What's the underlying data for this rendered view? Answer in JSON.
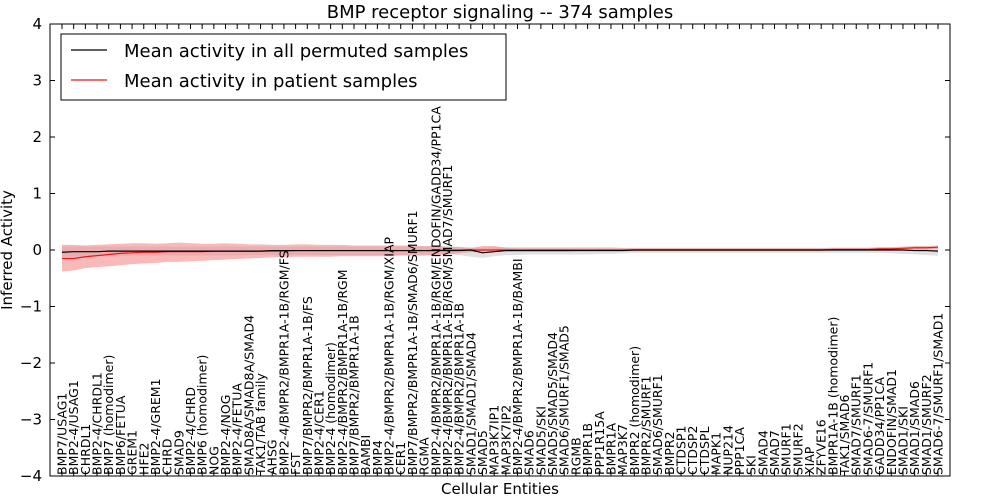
{
  "chart_data": {
    "type": "line",
    "title": "BMP receptor signaling -- 374 samples",
    "xlabel": "Cellular Entities",
    "ylabel": "Inferred Activity",
    "ylim": [
      -4,
      4
    ],
    "yticks": [
      -4,
      -3,
      -2,
      -1,
      0,
      1,
      2,
      3,
      4
    ],
    "legend_position": "top-left",
    "colors": {
      "permuted": "#000000",
      "patient": "#e41a1c",
      "patient_band": "#f28b8b",
      "permuted_band": "#c8c8c8"
    },
    "categories": [
      "BMP7/USAG1",
      "BMP2-4/USAG1",
      "CHRDL1",
      "BMP2-4/CHRDL1",
      "BMP7 (homodimer)",
      "BMP6/FETUA",
      "GREM1",
      "HFE2",
      "BMP2-4/GREM1",
      "CHRD",
      "SMAD9",
      "BMP2-4/CHRD",
      "BMP6 (homodimer)",
      "NOG",
      "BMP2-4/NOG",
      "BMP2-4/FETUA",
      "SMAD8A/SMAD8A/SMAD4",
      "TAK1/TAB family",
      "AHSG",
      "BMP2-4/BMPR2/BMPR1A-1B/RGM/FS",
      "FST",
      "BMP7/BMPR2/BMPR1A-1B/FS",
      "BMP2-4/CER1",
      "BMP2-4 (homodimer)",
      "BMP2-4/BMPR2/BMPR1A-1B/RGM",
      "BMP7/BMPR2/BMPR1A-1B",
      "BAMBI",
      "BMP4",
      "BMP2-4/BMPR2/BMPR1A-1B/RGM/XIAP",
      "CER1",
      "BMP7/BMPR2/BMPR1A-1B/SMAD6/SMURF1",
      "RGMA",
      "BMP2-4/BMPR2/BMPR1A-1B/RGM/ENDOFIN/GADD34/PP1CA",
      "BMP2-4/BMPR2/BMPR1A-1B/RGM/SMAD7/SMURF1",
      "BMP2-4/BMPR2/BMPR1A-1B",
      "SMAD1/SMAD1/SMAD4",
      "SMAD5",
      "MAP3K7IP1",
      "MAP3K7IP2",
      "BMP2-4/BMPR2/BMPR1A-1B/BAMBI",
      "SMAD6",
      "SMAD5/SKI",
      "SMAD5/SMAD5/SMAD4",
      "SMAD6/SMURF1/SMAD5",
      "RGMB",
      "BMPR1B",
      "PPP1R15A",
      "BMPR1A",
      "MAP3K7",
      "BMPR2 (homodimer)",
      "BMPR2/SMURF1",
      "SMAD6/SMURF1",
      "BMPR2",
      "CTDSP1",
      "CTDSP2",
      "CTDSPL",
      "MAPK1",
      "NUP214",
      "PPP1CA",
      "SKI",
      "SMAD4",
      "SMAD7",
      "SMURF1",
      "SMURF2",
      "XIAP",
      "ZFYVE16",
      "BMPR1A-1B (homodimer)",
      "TAK1/SMAD6",
      "SMAD7/SMURF1",
      "SMAD6-7/SMURF1",
      "GADD34/PP1CA",
      "ENDOFIN/SMAD1",
      "SMAD1/SKI",
      "SMAD1/SMAD6",
      "SMAD1/SMURF2",
      "SMAD6-7/SMURF1/SMAD1"
    ],
    "series": [
      {
        "name": "Mean activity in all permuted samples",
        "values": [
          -0.04,
          -0.03,
          -0.03,
          -0.03,
          -0.02,
          -0.02,
          -0.02,
          -0.02,
          -0.02,
          -0.02,
          -0.02,
          -0.02,
          -0.02,
          -0.02,
          -0.02,
          -0.02,
          -0.02,
          -0.02,
          -0.01,
          -0.01,
          -0.01,
          -0.01,
          -0.01,
          -0.01,
          -0.01,
          -0.01,
          -0.01,
          -0.01,
          -0.01,
          -0.01,
          -0.01,
          -0.01,
          -0.01,
          -0.01,
          -0.01,
          0.0,
          -0.05,
          -0.03,
          -0.01,
          -0.01,
          -0.01,
          -0.01,
          -0.01,
          -0.01,
          -0.01,
          -0.01,
          -0.01,
          -0.01,
          -0.01,
          0.0,
          0.0,
          0.0,
          0.0,
          0.0,
          0.0,
          0.0,
          0.0,
          0.0,
          0.0,
          0.0,
          0.0,
          0.0,
          0.0,
          0.0,
          0.0,
          0.0,
          0.0,
          0.0,
          0.0,
          0.0,
          0.0,
          0.0,
          0.0,
          -0.01,
          -0.01,
          -0.02
        ],
        "band_low": [
          -0.12,
          -0.12,
          -0.11,
          -0.11,
          -0.11,
          -0.11,
          -0.1,
          -0.1,
          -0.1,
          -0.1,
          -0.1,
          -0.1,
          -0.1,
          -0.1,
          -0.1,
          -0.1,
          -0.09,
          -0.09,
          -0.09,
          -0.09,
          -0.09,
          -0.09,
          -0.09,
          -0.09,
          -0.09,
          -0.09,
          -0.09,
          -0.09,
          -0.09,
          -0.09,
          -0.08,
          -0.08,
          -0.08,
          -0.08,
          -0.09,
          -0.12,
          -0.14,
          -0.11,
          -0.09,
          -0.09,
          -0.08,
          -0.08,
          -0.08,
          -0.08,
          -0.08,
          -0.08,
          -0.07,
          -0.07,
          -0.06,
          -0.05,
          -0.05,
          -0.05,
          -0.05,
          -0.05,
          -0.05,
          -0.05,
          -0.05,
          -0.05,
          -0.05,
          -0.05,
          -0.05,
          -0.05,
          -0.05,
          -0.05,
          -0.05,
          -0.05,
          -0.05,
          -0.05,
          -0.05,
          -0.05,
          -0.05,
          -0.06,
          -0.07,
          -0.08,
          -0.09,
          -0.1
        ],
        "band_high": [
          0.06,
          0.06,
          0.06,
          0.06,
          0.06,
          0.06,
          0.06,
          0.06,
          0.06,
          0.06,
          0.06,
          0.06,
          0.06,
          0.06,
          0.06,
          0.06,
          0.06,
          0.06,
          0.06,
          0.06,
          0.06,
          0.06,
          0.06,
          0.06,
          0.06,
          0.06,
          0.06,
          0.06,
          0.06,
          0.06,
          0.06,
          0.06,
          0.06,
          0.06,
          0.06,
          0.05,
          0.04,
          0.05,
          0.05,
          0.05,
          0.05,
          0.05,
          0.05,
          0.05,
          0.05,
          0.05,
          0.05,
          0.05,
          0.04,
          0.04,
          0.04,
          0.04,
          0.04,
          0.04,
          0.04,
          0.04,
          0.04,
          0.04,
          0.04,
          0.04,
          0.04,
          0.04,
          0.04,
          0.04,
          0.04,
          0.04,
          0.04,
          0.04,
          0.04,
          0.04,
          0.04,
          0.04,
          0.04,
          0.04,
          0.04,
          0.04
        ]
      },
      {
        "name": "Mean activity in patient samples",
        "values": [
          -0.15,
          -0.15,
          -0.12,
          -0.1,
          -0.08,
          -0.06,
          -0.05,
          -0.04,
          -0.04,
          -0.03,
          -0.03,
          -0.03,
          -0.03,
          -0.02,
          -0.02,
          -0.02,
          -0.02,
          -0.02,
          -0.02,
          -0.02,
          -0.01,
          -0.01,
          -0.01,
          -0.01,
          -0.01,
          -0.01,
          -0.01,
          -0.01,
          -0.01,
          -0.01,
          -0.01,
          -0.01,
          -0.01,
          0.0,
          0.0,
          0.0,
          0.0,
          0.0,
          0.0,
          0.0,
          0.0,
          0.0,
          0.0,
          0.0,
          0.0,
          0.0,
          0.0,
          0.0,
          0.0,
          0.0,
          0.0,
          0.0,
          0.0,
          0.0,
          0.0,
          0.0,
          0.0,
          0.0,
          0.0,
          0.0,
          0.0,
          0.0,
          0.0,
          0.0,
          0.0,
          0.0,
          0.01,
          0.01,
          0.01,
          0.01,
          0.02,
          0.02,
          0.03,
          0.04,
          0.04,
          0.05
        ],
        "band_low": [
          -0.38,
          -0.36,
          -0.32,
          -0.3,
          -0.29,
          -0.27,
          -0.25,
          -0.24,
          -0.23,
          -0.21,
          -0.21,
          -0.2,
          -0.19,
          -0.18,
          -0.17,
          -0.16,
          -0.15,
          -0.14,
          -0.13,
          -0.13,
          -0.12,
          -0.12,
          -0.12,
          -0.12,
          -0.11,
          -0.11,
          -0.11,
          -0.11,
          -0.11,
          -0.1,
          -0.1,
          -0.1,
          -0.09,
          -0.08,
          -0.06,
          -0.04,
          -0.03,
          -0.03,
          -0.03,
          -0.03,
          -0.03,
          -0.03,
          -0.03,
          -0.03,
          -0.02,
          -0.02,
          -0.02,
          -0.02,
          -0.02,
          -0.02,
          -0.02,
          -0.02,
          -0.02,
          -0.02,
          -0.02,
          -0.02,
          -0.02,
          -0.02,
          -0.02,
          -0.02,
          -0.02,
          -0.02,
          -0.02,
          -0.02,
          -0.02,
          -0.02,
          -0.01,
          -0.01,
          -0.01,
          -0.01,
          -0.01,
          0.0,
          0.0,
          0.01,
          0.01,
          0.02
        ],
        "band_high": [
          0.09,
          0.09,
          0.08,
          0.09,
          0.1,
          0.11,
          0.12,
          0.12,
          0.11,
          0.12,
          0.13,
          0.12,
          0.11,
          0.11,
          0.12,
          0.11,
          0.1,
          0.1,
          0.09,
          0.09,
          0.1,
          0.1,
          0.09,
          0.09,
          0.09,
          0.08,
          0.08,
          0.08,
          0.08,
          0.08,
          0.08,
          0.07,
          0.07,
          0.06,
          0.05,
          0.03,
          0.07,
          0.07,
          0.04,
          0.03,
          0.03,
          0.03,
          0.03,
          0.03,
          0.03,
          0.03,
          0.03,
          0.03,
          0.03,
          0.03,
          0.03,
          0.03,
          0.03,
          0.03,
          0.03,
          0.03,
          0.03,
          0.03,
          0.03,
          0.03,
          0.03,
          0.03,
          0.03,
          0.03,
          0.03,
          0.03,
          0.04,
          0.04,
          0.04,
          0.04,
          0.05,
          0.05,
          0.06,
          0.07,
          0.07,
          0.08
        ]
      }
    ]
  }
}
